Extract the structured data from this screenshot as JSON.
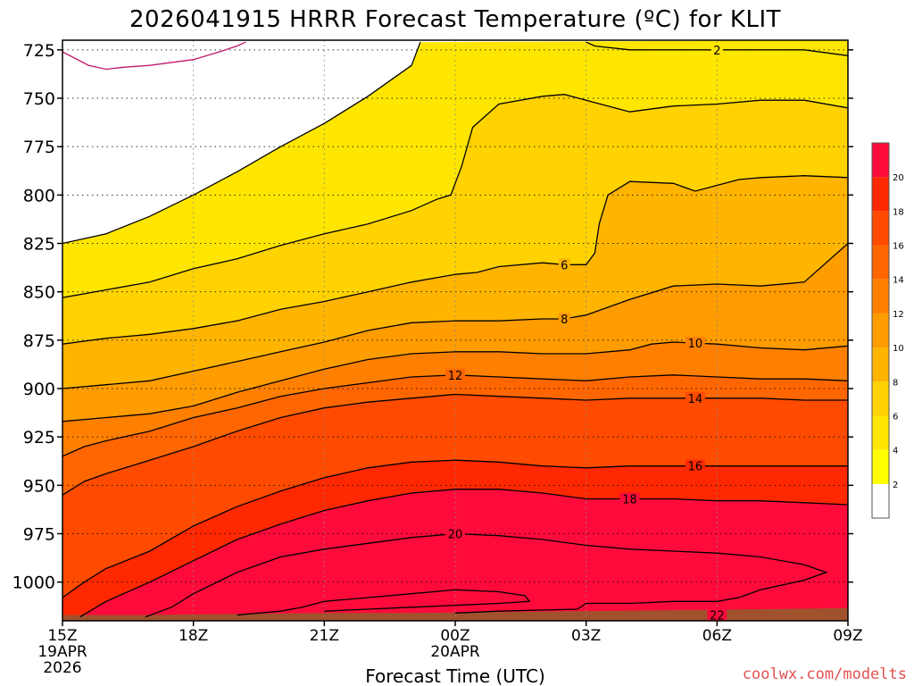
{
  "chart_data": {
    "type": "contour",
    "title": "2026041915 HRRR Forecast Temperature (ºC) for KLIT",
    "xlabel": "Forecast Time (UTC)",
    "ylabel": "",
    "credit": "coolwx.com/modelts",
    "x_range_hours": [
      0,
      18
    ],
    "y_range_hpa": [
      1020,
      720
    ],
    "x_ticks": [
      {
        "hour": 0,
        "label": "15Z",
        "sub1": "19APR",
        "sub2": "2026"
      },
      {
        "hour": 3,
        "label": "18Z",
        "sub1": "",
        "sub2": ""
      },
      {
        "hour": 6,
        "label": "21Z",
        "sub1": "",
        "sub2": ""
      },
      {
        "hour": 9,
        "label": "00Z",
        "sub1": "20APR",
        "sub2": ""
      },
      {
        "hour": 12,
        "label": "03Z",
        "sub1": "",
        "sub2": ""
      },
      {
        "hour": 15,
        "label": "06Z",
        "sub1": "",
        "sub2": ""
      },
      {
        "hour": 18,
        "label": "09Z",
        "sub1": "",
        "sub2": ""
      }
    ],
    "y_ticks": [
      {
        "p": 725,
        "label": "725"
      },
      {
        "p": 750,
        "label": "750"
      },
      {
        "p": 775,
        "label": "775"
      },
      {
        "p": 800,
        "label": "800"
      },
      {
        "p": 825,
        "label": "825"
      },
      {
        "p": 850,
        "label": "850"
      },
      {
        "p": 875,
        "label": "875"
      },
      {
        "p": 900,
        "label": "900"
      },
      {
        "p": 925,
        "label": "925"
      },
      {
        "p": 950,
        "label": "950"
      },
      {
        "p": 975,
        "label": "975"
      },
      {
        "p": 1000,
        "label": "1000"
      }
    ],
    "colorbar": {
      "levels": [
        0,
        2,
        4,
        6,
        8,
        10,
        12,
        14,
        16,
        18,
        20,
        22
      ],
      "tick_labels": [
        "2",
        "4",
        "6",
        "8",
        "10",
        "12",
        "14",
        "16",
        "18",
        "20"
      ],
      "colors": [
        "#ffffff",
        "#ffff00",
        "#ffe600",
        "#ffd200",
        "#ffb400",
        "#ff9c00",
        "#ff8000",
        "#ff6600",
        "#ff4b00",
        "#ff2800",
        "#ff0b3b"
      ]
    },
    "ground_color": "#a0522d",
    "contours": [
      {
        "level": 0,
        "points": [
          [
            0,
            726
          ],
          [
            0.6,
            733
          ],
          [
            1,
            735
          ],
          [
            1.4,
            734
          ],
          [
            2,
            733
          ],
          [
            3,
            730
          ],
          [
            3.6,
            726
          ],
          [
            4,
            723
          ],
          [
            4.2,
            721
          ]
        ]
      },
      {
        "level": 2,
        "points": [
          [
            0,
            825
          ],
          [
            1,
            820
          ],
          [
            2,
            811
          ],
          [
            3,
            800
          ],
          [
            4,
            788
          ],
          [
            5,
            775
          ],
          [
            6,
            763
          ],
          [
            7,
            749
          ],
          [
            8,
            733
          ],
          [
            8.2,
            721
          ]
        ]
      },
      {
        "level": 2,
        "points": [
          [
            12,
            721
          ],
          [
            12.2,
            723
          ],
          [
            13,
            725
          ],
          [
            14,
            725
          ],
          [
            15,
            725
          ],
          [
            16,
            725
          ],
          [
            17,
            725
          ],
          [
            18,
            728
          ]
        ],
        "label_x": 15.0
      },
      {
        "level": 4,
        "points": [
          [
            0,
            853
          ],
          [
            1,
            849
          ],
          [
            2,
            845
          ],
          [
            3,
            838
          ],
          [
            4,
            833
          ],
          [
            5,
            826
          ],
          [
            6,
            820
          ],
          [
            7,
            815
          ],
          [
            8,
            808
          ],
          [
            8.6,
            802
          ],
          [
            8.9,
            800
          ],
          [
            9.15,
            785
          ],
          [
            9.4,
            765
          ],
          [
            10,
            753
          ],
          [
            11,
            749
          ],
          [
            11.5,
            748
          ],
          [
            12,
            751
          ],
          [
            12.5,
            754
          ],
          [
            13,
            757
          ],
          [
            14,
            754
          ],
          [
            15,
            753
          ],
          [
            16,
            751
          ],
          [
            17,
            751
          ],
          [
            18,
            755
          ]
        ]
      },
      {
        "level": 6,
        "points": [
          [
            0,
            877
          ],
          [
            1,
            874
          ],
          [
            2,
            872
          ],
          [
            3,
            869
          ],
          [
            4,
            865
          ],
          [
            5,
            859
          ],
          [
            6,
            855
          ],
          [
            7,
            850
          ],
          [
            8,
            845
          ],
          [
            9,
            841
          ],
          [
            9.5,
            840
          ],
          [
            10,
            837
          ],
          [
            11,
            835
          ],
          [
            11.5,
            836
          ],
          [
            12,
            836
          ],
          [
            12.2,
            830
          ],
          [
            12.3,
            815
          ],
          [
            12.5,
            800
          ],
          [
            13,
            793
          ],
          [
            14,
            794
          ],
          [
            14.5,
            798
          ],
          [
            15,
            795
          ],
          [
            15.5,
            792
          ],
          [
            16,
            791
          ],
          [
            17,
            790
          ],
          [
            18,
            791
          ]
        ],
        "label_x": 11.5
      },
      {
        "level": 8,
        "points": [
          [
            0,
            900
          ],
          [
            1,
            898
          ],
          [
            2,
            896
          ],
          [
            3,
            891
          ],
          [
            4,
            886
          ],
          [
            5,
            881
          ],
          [
            6,
            876
          ],
          [
            7,
            870
          ],
          [
            8,
            866
          ],
          [
            9,
            865
          ],
          [
            10,
            865
          ],
          [
            11,
            864
          ],
          [
            11.5,
            864
          ],
          [
            12,
            862
          ],
          [
            13,
            854
          ],
          [
            14,
            847
          ],
          [
            15,
            846
          ],
          [
            16,
            847
          ],
          [
            17,
            845
          ],
          [
            18,
            825
          ]
        ],
        "label_x": 11.5
      },
      {
        "level": 10,
        "points": [
          [
            0,
            917
          ],
          [
            1,
            915
          ],
          [
            2,
            913
          ],
          [
            3,
            909
          ],
          [
            4,
            902
          ],
          [
            5,
            896
          ],
          [
            6,
            890
          ],
          [
            7,
            885
          ],
          [
            8,
            882
          ],
          [
            9,
            881
          ],
          [
            10,
            881
          ],
          [
            11,
            882
          ],
          [
            12,
            882
          ],
          [
            13,
            880
          ],
          [
            13.5,
            877
          ],
          [
            14,
            876
          ],
          [
            15,
            877
          ],
          [
            16,
            879
          ],
          [
            17,
            880
          ],
          [
            18,
            878
          ]
        ],
        "label_x": 14.5
      },
      {
        "level": 12,
        "points": [
          [
            0,
            935
          ],
          [
            0.5,
            930
          ],
          [
            1,
            927
          ],
          [
            2,
            922
          ],
          [
            3,
            915
          ],
          [
            4,
            910
          ],
          [
            5,
            904
          ],
          [
            6,
            900
          ],
          [
            7,
            897
          ],
          [
            8,
            894
          ],
          [
            9,
            893
          ],
          [
            10,
            894
          ],
          [
            11,
            895
          ],
          [
            12,
            896
          ],
          [
            13,
            894
          ],
          [
            14,
            893
          ],
          [
            15,
            894
          ],
          [
            16,
            895
          ],
          [
            17,
            895
          ],
          [
            18,
            896
          ]
        ],
        "label_x": 9.0
      },
      {
        "level": 14,
        "points": [
          [
            0,
            955
          ],
          [
            0.5,
            948
          ],
          [
            1,
            944
          ],
          [
            2,
            937
          ],
          [
            3,
            930
          ],
          [
            4,
            922
          ],
          [
            5,
            915
          ],
          [
            6,
            910
          ],
          [
            7,
            907
          ],
          [
            8,
            905
          ],
          [
            9,
            903
          ],
          [
            10,
            904
          ],
          [
            11,
            905
          ],
          [
            12,
            906
          ],
          [
            13,
            905
          ],
          [
            14,
            905
          ],
          [
            15,
            905
          ],
          [
            16,
            905
          ],
          [
            17,
            906
          ],
          [
            18,
            906
          ]
        ],
        "label_x": 14.5
      },
      {
        "level": 16,
        "points": [
          [
            0,
            1008
          ],
          [
            0.5,
            1000
          ],
          [
            1,
            993
          ],
          [
            2,
            984
          ],
          [
            3,
            971
          ],
          [
            4,
            961
          ],
          [
            5,
            953
          ],
          [
            6,
            946
          ],
          [
            7,
            941
          ],
          [
            8,
            938
          ],
          [
            9,
            937
          ],
          [
            10,
            938
          ],
          [
            11,
            940
          ],
          [
            12,
            941
          ],
          [
            13,
            940
          ],
          [
            14,
            940
          ],
          [
            15,
            940
          ],
          [
            16,
            940
          ],
          [
            17,
            940
          ],
          [
            18,
            940
          ]
        ],
        "label_x": 14.5
      },
      {
        "level": 18,
        "points": [
          [
            0.4,
            1018
          ],
          [
            1,
            1010
          ],
          [
            2,
            1000
          ],
          [
            3,
            989
          ],
          [
            4,
            978
          ],
          [
            5,
            970
          ],
          [
            6,
            963
          ],
          [
            7,
            958
          ],
          [
            8,
            954
          ],
          [
            9,
            952
          ],
          [
            10,
            952
          ],
          [
            11,
            954
          ],
          [
            12,
            957
          ],
          [
            13,
            957
          ],
          [
            14,
            957
          ],
          [
            15,
            958
          ],
          [
            16,
            958
          ],
          [
            17,
            959
          ],
          [
            18,
            960
          ]
        ],
        "label_x": 13.0
      },
      {
        "level": 20,
        "points": [
          [
            1.9,
            1018
          ],
          [
            2.5,
            1013
          ],
          [
            3,
            1006
          ],
          [
            4,
            995
          ],
          [
            5,
            987
          ],
          [
            6,
            983
          ],
          [
            7,
            980
          ],
          [
            8,
            977
          ],
          [
            9,
            975
          ],
          [
            10,
            976
          ],
          [
            11,
            978
          ],
          [
            12,
            981
          ],
          [
            13,
            983
          ],
          [
            14,
            984
          ],
          [
            15,
            985
          ],
          [
            16,
            987
          ],
          [
            17,
            991
          ],
          [
            17.5,
            995
          ],
          [
            17,
            999
          ],
          [
            16,
            1004
          ],
          [
            15.5,
            1008
          ],
          [
            15,
            1010
          ],
          [
            14,
            1010
          ],
          [
            13,
            1011
          ],
          [
            12,
            1011
          ],
          [
            11.8,
            1014
          ],
          [
            10,
            1015
          ],
          [
            9,
            1016
          ]
        ],
        "label_x": 9.0
      },
      {
        "level": 22,
        "points": [
          [
            4.0,
            1017
          ],
          [
            5,
            1015
          ],
          [
            5.5,
            1013
          ],
          [
            6,
            1010
          ],
          [
            7,
            1008
          ],
          [
            8,
            1006
          ],
          [
            9,
            1004
          ],
          [
            10,
            1005
          ],
          [
            10.6,
            1007
          ],
          [
            10.7,
            1010
          ],
          [
            10,
            1011
          ],
          [
            9,
            1012
          ],
          [
            8,
            1013
          ],
          [
            7,
            1014
          ],
          [
            6,
            1015
          ]
        ],
        "label_x": 15.0
      }
    ]
  }
}
